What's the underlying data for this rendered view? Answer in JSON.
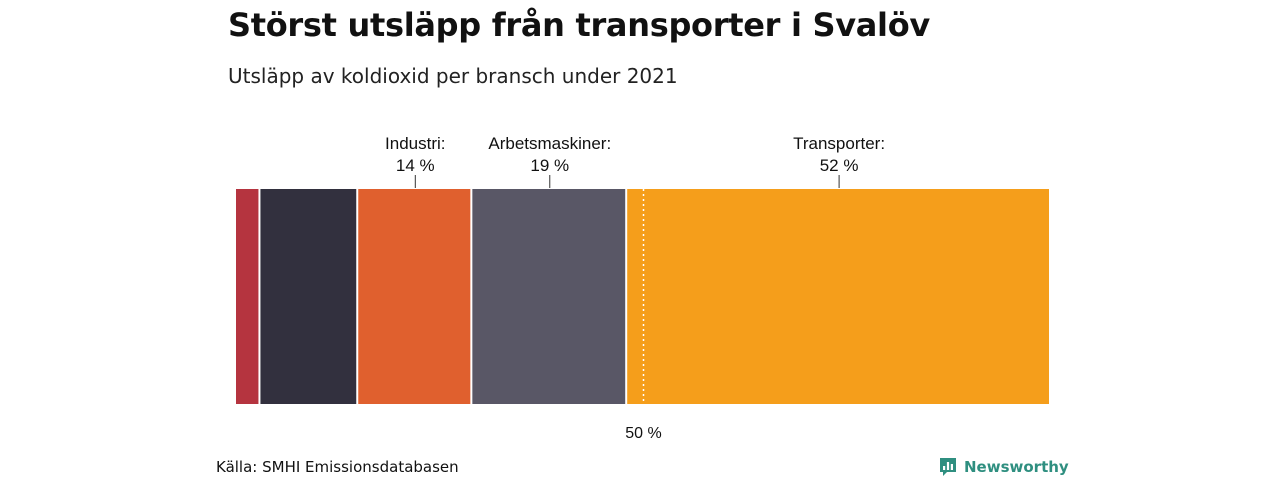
{
  "header": {
    "title": "Störst utsläpp från transporter i Svalöv",
    "subtitle": "Utsläpp av koldioxid per bransch under 2021"
  },
  "footer": {
    "source": "Källa: SMHI Emissionsdatabasen",
    "brand": "Newsworthy"
  },
  "colors": {
    "brand": "#2f8f80",
    "reference_line": "#ffffff"
  },
  "chart_data": {
    "type": "bar",
    "orientation": "horizontal-stacked",
    "title": "Störst utsläpp från transporter i Svalöv",
    "subtitle": "Utsläpp av koldioxid per bransch under 2021",
    "xlim": [
      0,
      100
    ],
    "unit": "%",
    "reference_line": {
      "value": 50,
      "label": "50 %"
    },
    "segments": [
      {
        "name": "",
        "value": 3,
        "color": "#b5343f",
        "label_title": "",
        "label_value": ""
      },
      {
        "name": "",
        "value": 12,
        "color": "#32303e",
        "label_title": "",
        "label_value": ""
      },
      {
        "name": "Industri",
        "value": 14,
        "color": "#e0602e",
        "label_title": "Industri:",
        "label_value": "14 %"
      },
      {
        "name": "Arbetsmaskiner",
        "value": 19,
        "color": "#595766",
        "label_title": "Arbetsmaskiner:",
        "label_value": "19 %"
      },
      {
        "name": "Transporter",
        "value": 52,
        "color": "#f59e1b",
        "label_title": "Transporter:",
        "label_value": "52 %"
      }
    ]
  }
}
